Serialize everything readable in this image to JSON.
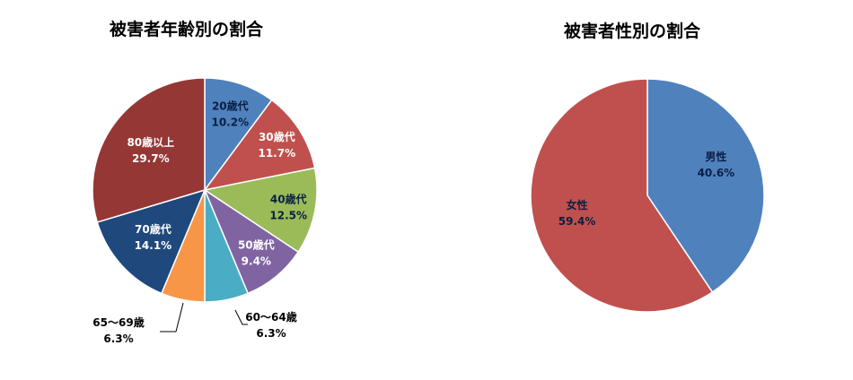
{
  "chart_data": [
    {
      "type": "pie",
      "title": "被害者年齢別の割合",
      "series": [
        {
          "categories": [
            "20歳代",
            "30歳代",
            "40歳代",
            "50歳代",
            "60～64歳",
            "65～69歳",
            "70歳代",
            "80歳以上"
          ],
          "values": [
            10.2,
            11.7,
            12.5,
            9.4,
            6.3,
            6.3,
            14.1,
            29.7
          ],
          "labels": [
            "10.2%",
            "11.7%",
            "12.5%",
            "9.4%",
            "6.3%",
            "6.3%",
            "14.1%",
            "29.7%"
          ],
          "colors": [
            "#4f81bd",
            "#c0504d",
            "#9bbb59",
            "#8064a2",
            "#4bacc6",
            "#f79646",
            "#1f497d",
            "#953735"
          ]
        }
      ]
    },
    {
      "type": "pie",
      "title": "被害者性別の割合",
      "series": [
        {
          "categories": [
            "男性",
            "女性"
          ],
          "values": [
            40.6,
            59.4
          ],
          "labels": [
            "40.6%",
            "59.4%"
          ],
          "colors": [
            "#4f81bd",
            "#c0504d"
          ]
        }
      ]
    }
  ]
}
